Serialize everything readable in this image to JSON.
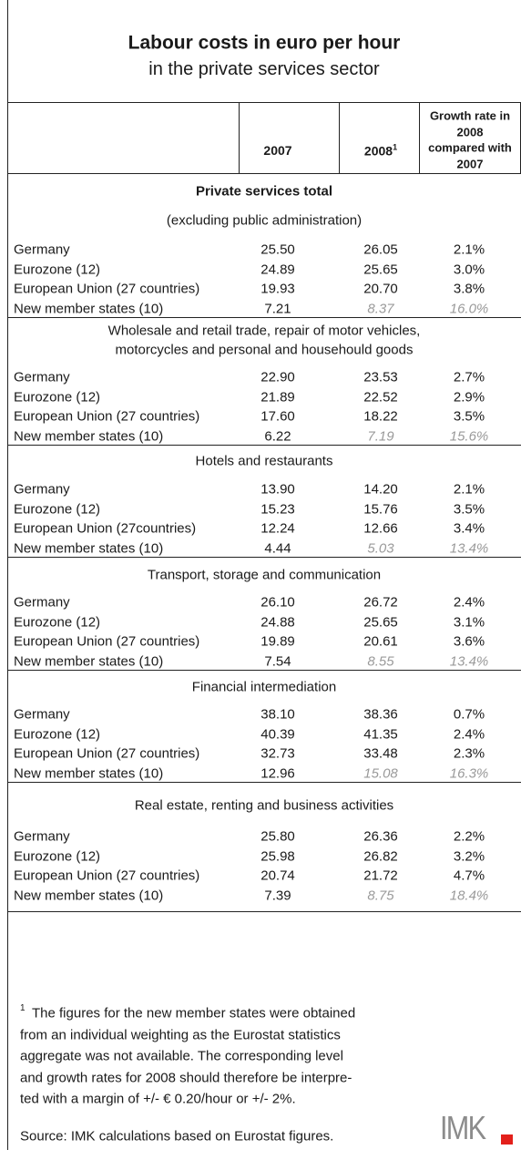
{
  "header": {
    "title": "Labour costs in euro per hour",
    "subtitle": "in the private services sector"
  },
  "table": {
    "columns": {
      "y2007": "2007",
      "y2008": "2008",
      "y2008_note": "1",
      "growth": [
        "Growth rate in",
        "2008",
        "compared with",
        "2007"
      ]
    },
    "sections": [
      {
        "title": [
          "Private services total"
        ],
        "subtitle": "(excluding public administration)",
        "rows": [
          [
            "Germany",
            "25.50",
            "26.05",
            "2.1%"
          ],
          [
            "Eurozone (12)",
            "24.89",
            "25.65",
            "3.0%"
          ],
          [
            "European Union (27 countries)",
            "19.93",
            "20.70",
            "3.8%"
          ],
          [
            "New member states (10)",
            "7.21",
            "8.37",
            "16.0%"
          ]
        ]
      },
      {
        "title": [
          "Wholesale and retail trade, repair of motor vehicles,",
          "motorcycles and personal and househould goods"
        ],
        "rows": [
          [
            "Germany",
            "22.90",
            "23.53",
            "2.7%"
          ],
          [
            "Eurozone (12)",
            "21.89",
            "22.52",
            "2.9%"
          ],
          [
            "European Union (27 countries)",
            "17.60",
            "18.22",
            "3.5%"
          ],
          [
            "New member states (10)",
            "6.22",
            "7.19",
            "15.6%"
          ]
        ]
      },
      {
        "title": [
          "Hotels and restaurants"
        ],
        "rows": [
          [
            "Germany",
            "13.90",
            "14.20",
            "2.1%"
          ],
          [
            "Eurozone (12)",
            "15.23",
            "15.76",
            "3.5%"
          ],
          [
            "European Union (27countries)",
            "12.24",
            "12.66",
            "3.4%"
          ],
          [
            "New member states (10)",
            "4.44",
            "5.03",
            "13.4%"
          ]
        ]
      },
      {
        "title": [
          "Transport, storage and communication"
        ],
        "rows": [
          [
            "Germany",
            "26.10",
            "26.72",
            "2.4%"
          ],
          [
            "Eurozone (12)",
            "24.88",
            "25.65",
            "3.1%"
          ],
          [
            "European Union (27 countries)",
            "19.89",
            "20.61",
            "3.6%"
          ],
          [
            "New member states (10)",
            "7.54",
            "8.55",
            "13.4%"
          ]
        ]
      },
      {
        "title": [
          "Financial intermediation"
        ],
        "rows": [
          [
            "Germany",
            "38.10",
            "38.36",
            "0.7%"
          ],
          [
            "Eurozone (12)",
            "40.39",
            "41.35",
            "2.4%"
          ],
          [
            "European Union (27 countries)",
            "32.73",
            "33.48",
            "2.3%"
          ],
          [
            "New member states (10)",
            "12.96",
            "15.08",
            "16.3%"
          ]
        ]
      },
      {
        "title": [
          "Real estate, renting and business activities"
        ],
        "rows": [
          [
            "Germany",
            "25.80",
            "26.36",
            "2.2%"
          ],
          [
            "Eurozone (12)",
            "25.98",
            "26.82",
            "3.2%"
          ],
          [
            "European Union (27 countries)",
            "20.74",
            "21.72",
            "4.7%"
          ],
          [
            "New member states (10)",
            "7.39",
            "8.75",
            "18.4%"
          ]
        ]
      }
    ]
  },
  "footnote": {
    "marker": "1",
    "lines": [
      "The figures for the new member states were obtained",
      "from an individual weighting as the Eurostat statistics",
      "aggregate was not available. The corresponding level",
      "and growth rates for 2008 should therefore be interpre-",
      "ted with a margin of +/- € 0.20/hour or +/- 2%."
    ]
  },
  "source": "Source: IMK calculations based on Eurostat figures.",
  "logo": "IMK"
}
